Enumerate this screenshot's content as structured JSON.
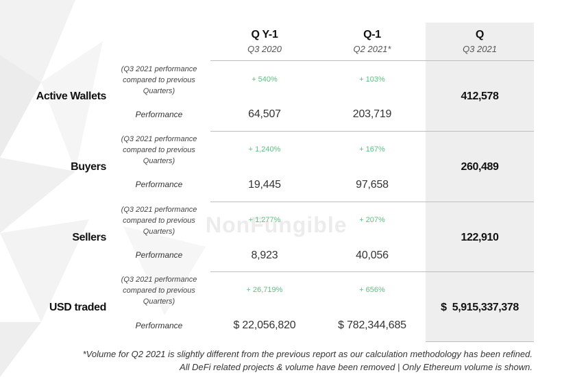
{
  "columns": [
    {
      "title": "Q Y-1",
      "subtitle": "Q3 2020"
    },
    {
      "title": "Q-1",
      "subtitle": "Q2 2021*"
    },
    {
      "title": "Q",
      "subtitle": "Q3 2021"
    }
  ],
  "rows": [
    {
      "label": "Active Wallets",
      "note": "(Q3 2021 performance compared to previous Quarters)",
      "perf_label": "Performance",
      "pct_y1": "+ 540%",
      "pct_q1": "+ 103%",
      "val_y1": "64,507",
      "val_q1": "203,719",
      "val_q": "412,578"
    },
    {
      "label": "Buyers",
      "note": "(Q3 2021 performance compared to previous Quarters)",
      "perf_label": "Performance",
      "pct_y1": "+ 1,240%",
      "pct_q1": "+ 167%",
      "val_y1": "19,445",
      "val_q1": "97,658",
      "val_q": "260,489"
    },
    {
      "label": "Sellers",
      "note": "(Q3 2021 performance compared to previous Quarters)",
      "perf_label": "Performance",
      "pct_y1": "+ 1,277%",
      "pct_q1": "+ 207%",
      "val_y1": "8,923",
      "val_q1": "40,056",
      "val_q": "122,910"
    },
    {
      "label": "USD traded",
      "note": "(Q3 2021 performance compared to previous Quarters)",
      "perf_label": "Performance",
      "pct_y1": "+ 26,719%",
      "pct_q1": "+ 656%",
      "val_y1": "$ 22,056,820",
      "val_q1": "$ 782,344,685",
      "val_q": "$  5,915,337,378"
    }
  ],
  "watermark": "NonFungible",
  "footnote": {
    "line1": "*Volume for Q2 2021 is slightly different from the previous report as our calculation methodology has been refined.",
    "line2": "All DeFi related projects & volume have been removed | Only Ethereum volume is shown."
  },
  "colors": {
    "highlight": "#eeeeee",
    "percent_green": "#5cbf7f"
  }
}
